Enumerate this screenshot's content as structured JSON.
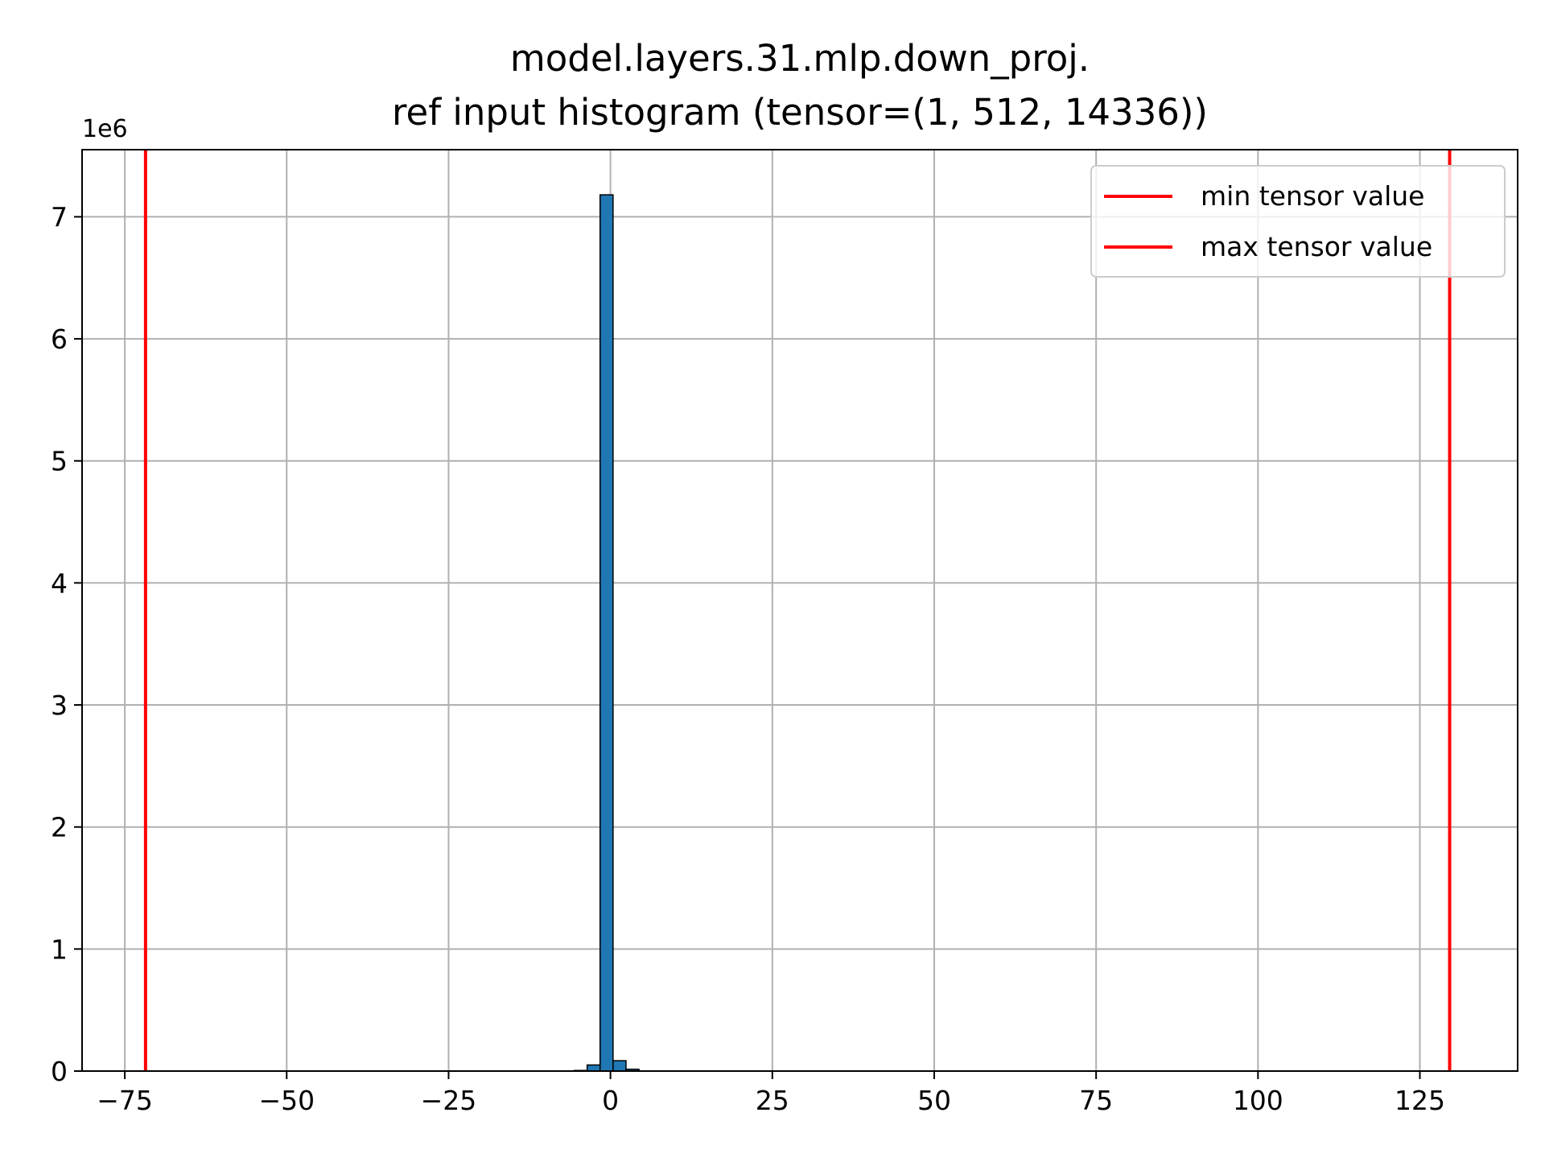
{
  "chart_data": {
    "type": "bar",
    "title_line1": "model.layers.31.mlp.down_proj.",
    "title_line2": "ref input histogram (tensor=(1, 512, 14336))",
    "offset_label": "1e6",
    "xlabel": "",
    "ylabel": "",
    "xlim": [
      -81.6,
      140.1
    ],
    "ylim": [
      0,
      7.55
    ],
    "y_scale_multiplier": 1000000,
    "xticks": [
      -75,
      -50,
      -25,
      0,
      25,
      50,
      75,
      100,
      125
    ],
    "xtick_labels": [
      "−75",
      "−50",
      "−25",
      "0",
      "25",
      "50",
      "75",
      "100",
      "125"
    ],
    "yticks": [
      0,
      1,
      2,
      3,
      4,
      5,
      6,
      7
    ],
    "ytick_labels": [
      "0",
      "1",
      "2",
      "3",
      "4",
      "5",
      "6",
      "7"
    ],
    "grid": true,
    "bar_color": "#1f77b4",
    "bar_edge_color": "#000000",
    "bins": [
      {
        "x0": -5.6,
        "x1": -3.6,
        "value": 0.005
      },
      {
        "x0": -3.6,
        "x1": -1.6,
        "value": 0.05
      },
      {
        "x0": -1.6,
        "x1": 0.4,
        "value": 7.18
      },
      {
        "x0": 0.4,
        "x1": 2.4,
        "value": 0.085
      },
      {
        "x0": 2.4,
        "x1": 4.4,
        "value": 0.015
      }
    ],
    "vlines": [
      {
        "name": "min tensor value",
        "x": -71.8,
        "color": "#ff0000"
      },
      {
        "name": "max tensor value",
        "x": 129.6,
        "color": "#ff0000"
      }
    ],
    "legend": {
      "placement": "top-right",
      "entries": [
        "min tensor value",
        "max tensor value"
      ]
    }
  }
}
